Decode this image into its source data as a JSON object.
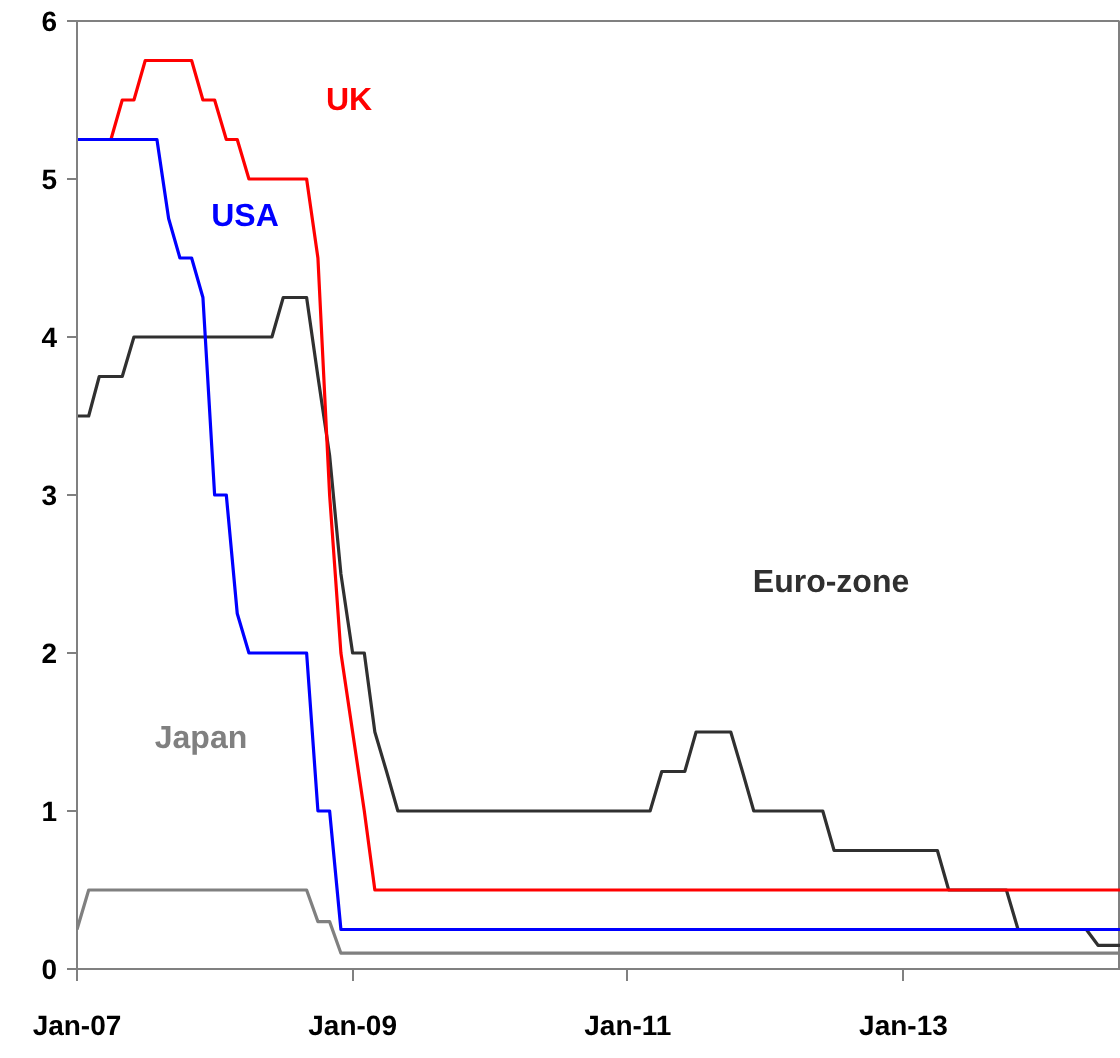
{
  "chart_data": {
    "type": "line",
    "series": [
      {
        "name": "Japan",
        "color": "#808080",
        "x": [
          "2007-01",
          "2007-02",
          "2008-09",
          "2008-10",
          "2008-11",
          "2008-12",
          "2014-08"
        ],
        "values": [
          0.25,
          0.5,
          0.5,
          0.3,
          0.3,
          0.1,
          0.1
        ]
      },
      {
        "name": "Euro-zone",
        "color": "#303030",
        "x": [
          "2007-01",
          "2007-02",
          "2007-03",
          "2007-05",
          "2007-06",
          "2008-06",
          "2008-07",
          "2008-09",
          "2008-10",
          "2008-11",
          "2008-12",
          "2009-01",
          "2009-02",
          "2009-03",
          "2009-04",
          "2009-05",
          "2011-03",
          "2011-04",
          "2011-06",
          "2011-07",
          "2011-10",
          "2011-11",
          "2011-12",
          "2012-06",
          "2012-07",
          "2013-04",
          "2013-05",
          "2013-10",
          "2013-11",
          "2014-05",
          "2014-06",
          "2014-08"
        ],
        "values": [
          3.5,
          3.5,
          3.75,
          3.75,
          4.0,
          4.0,
          4.25,
          4.25,
          3.75,
          3.25,
          2.5,
          2.0,
          2.0,
          1.5,
          1.25,
          1.0,
          1.0,
          1.25,
          1.25,
          1.5,
          1.5,
          1.25,
          1.0,
          1.0,
          0.75,
          0.75,
          0.5,
          0.5,
          0.25,
          0.25,
          0.15,
          0.15
        ]
      },
      {
        "name": "UK",
        "color": "#ff0000",
        "x": [
          "2007-04",
          "2007-05",
          "2007-06",
          "2007-07",
          "2007-11",
          "2007-12",
          "2008-01",
          "2008-02",
          "2008-03",
          "2008-04",
          "2008-09",
          "2008-10",
          "2008-11",
          "2008-12",
          "2009-01",
          "2009-02",
          "2009-03",
          "2014-08"
        ],
        "values": [
          5.25,
          5.5,
          5.5,
          5.75,
          5.75,
          5.5,
          5.5,
          5.25,
          5.25,
          5.0,
          5.0,
          4.5,
          3.0,
          2.0,
          1.5,
          1.0,
          0.5,
          0.5
        ]
      },
      {
        "name": "USA",
        "color": "#0000ff",
        "x": [
          "2007-01",
          "2007-08",
          "2007-09",
          "2007-10",
          "2007-11",
          "2007-12",
          "2008-01",
          "2008-02",
          "2008-03",
          "2008-04",
          "2008-09",
          "2008-10",
          "2008-11",
          "2008-12",
          "2014-08"
        ],
        "values": [
          5.25,
          5.25,
          4.75,
          4.5,
          4.5,
          4.25,
          3.0,
          3.0,
          2.25,
          2.0,
          2.0,
          1.0,
          1.0,
          0.25,
          0.25
        ]
      }
    ],
    "xlim": [
      "2007-01",
      "2014-08"
    ],
    "xticks": [
      {
        "value": "2007-01",
        "label": "Jan-07"
      },
      {
        "value": "2009-01",
        "label": "Jan-09"
      },
      {
        "value": "2011-01",
        "label": "Jan-11"
      },
      {
        "value": "2013-01",
        "label": "Jan-13"
      }
    ],
    "ylim": [
      0,
      6
    ],
    "yticks": [
      0,
      1,
      2,
      3,
      4,
      5,
      6
    ],
    "grid": false,
    "marker": "none",
    "line_style": "solid"
  }
}
